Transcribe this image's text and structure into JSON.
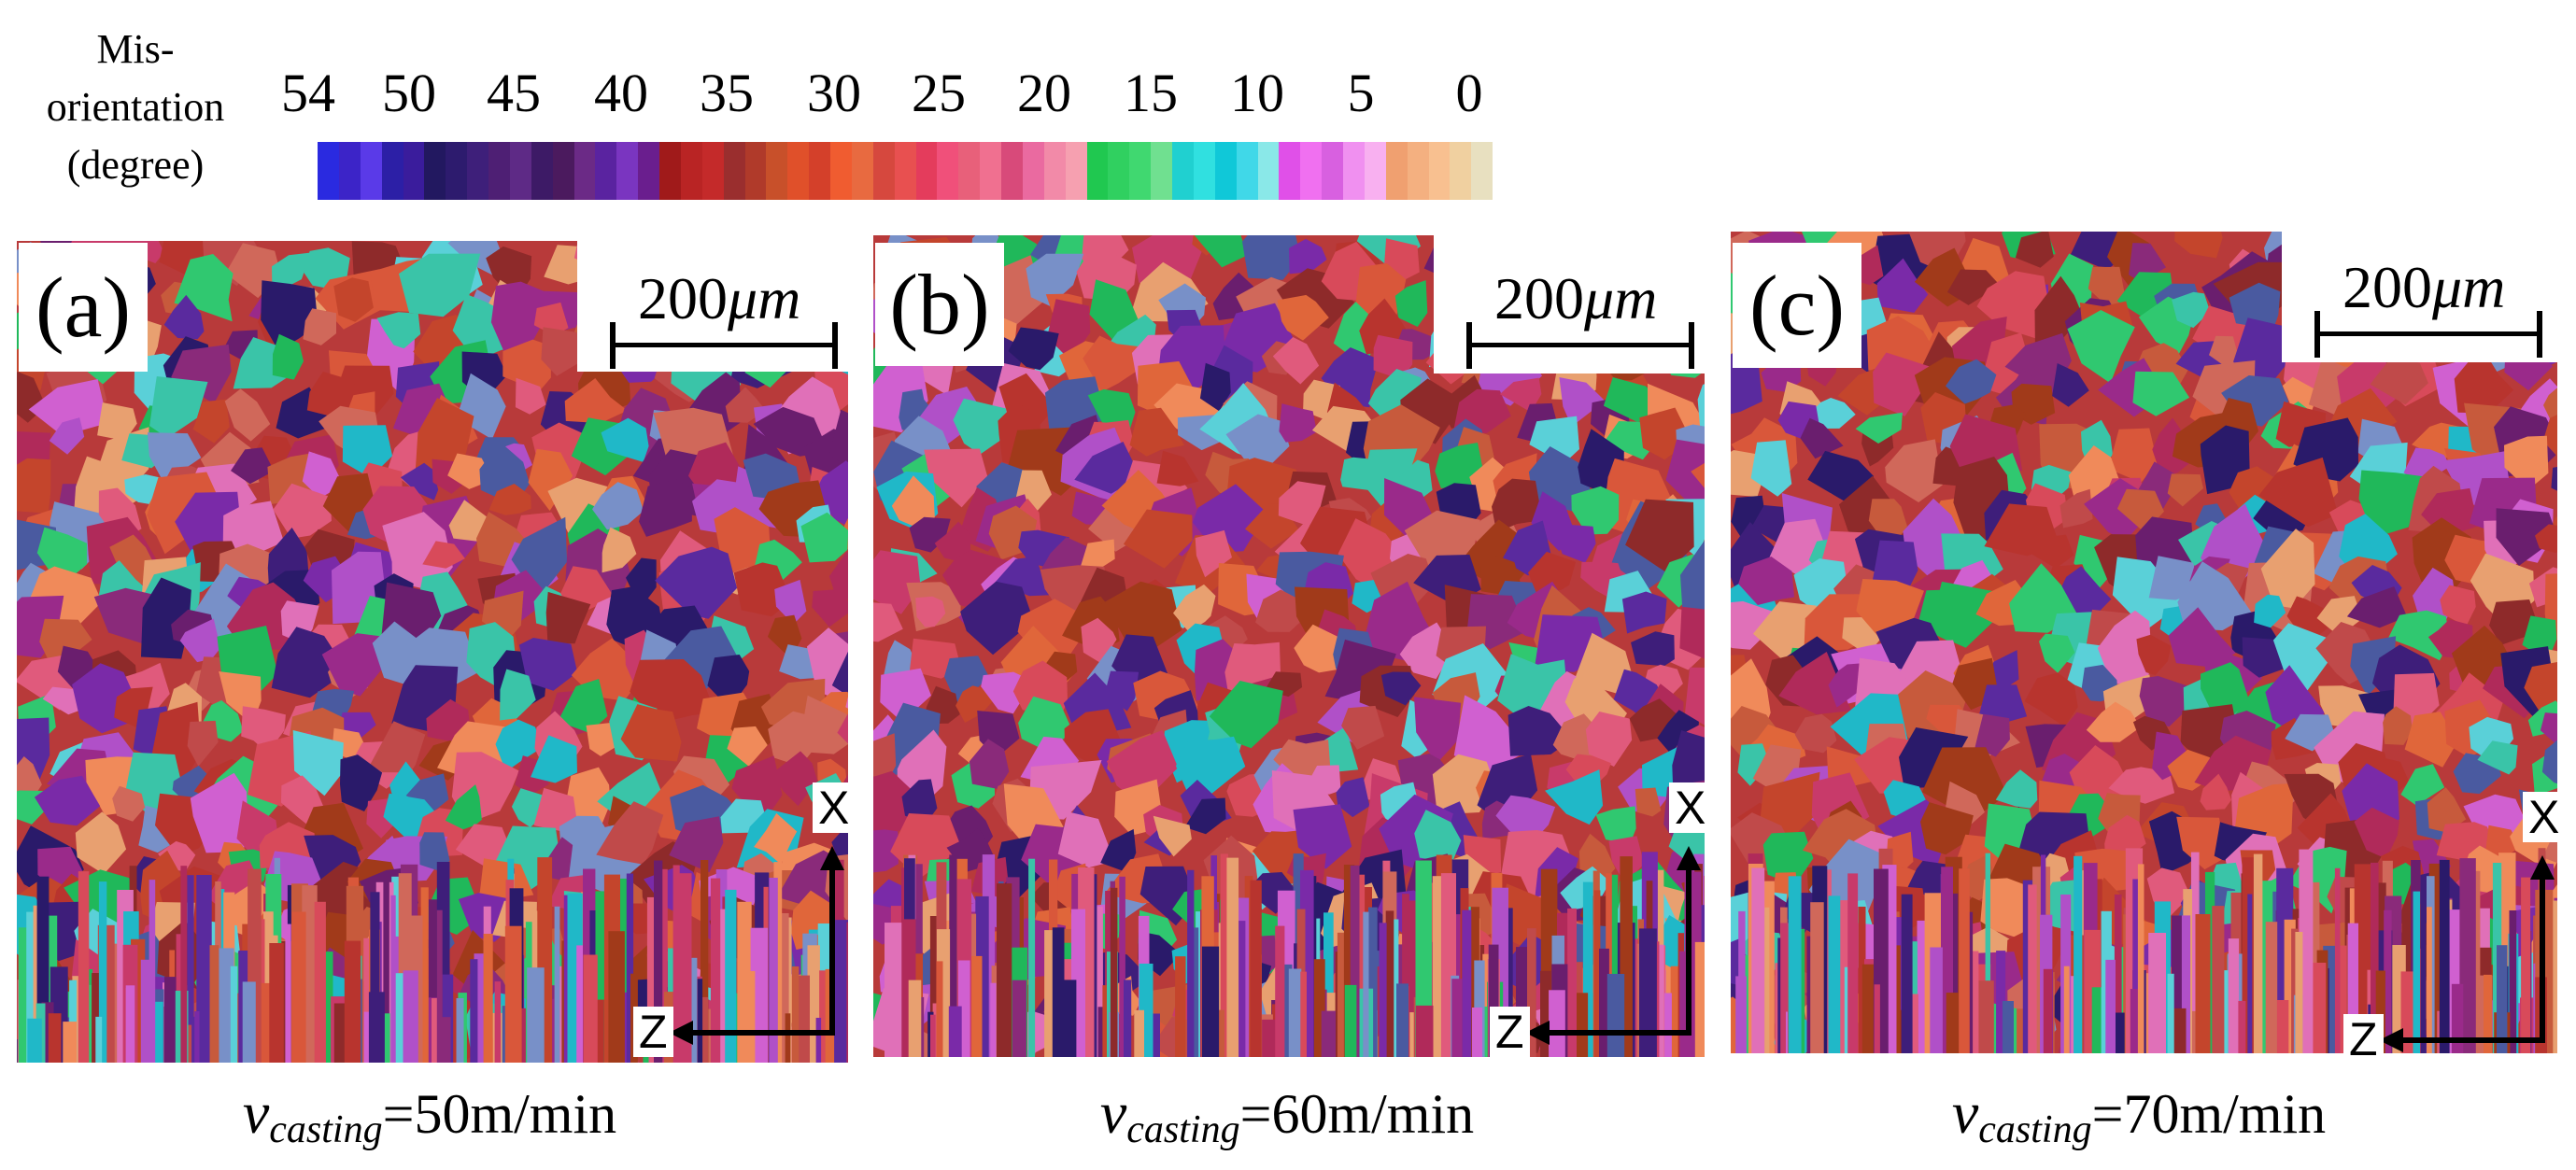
{
  "legend": {
    "title_lines": [
      "Mis-",
      "orientation",
      "(degree)"
    ],
    "ticks": [
      "54",
      "50",
      "45",
      "40",
      "35",
      "30",
      "25",
      "20",
      "15",
      "10",
      "5",
      "0"
    ],
    "segments": [
      "#2a2ae0",
      "#3c24c8",
      "#5a3ae8",
      "#2c1fa6",
      "#3a1c9c",
      "#221860",
      "#2d1b6e",
      "#3e1f7a",
      "#4e1f74",
      "#5e2a86",
      "#3d1a66",
      "#4b1a5e",
      "#6b2a86",
      "#5a23a0",
      "#7a35c0",
      "#6a1e8e",
      "#a01a1a",
      "#b92424",
      "#c42a2a",
      "#9a2e2e",
      "#b03a2a",
      "#c8502a",
      "#e0502a",
      "#d4402a",
      "#f05c30",
      "#e86a40",
      "#d6483e",
      "#e85050",
      "#e43c5c",
      "#f0507a",
      "#e8607a",
      "#f07090",
      "#d84a7a",
      "#ea6aa0",
      "#f28aa8",
      "#f6a0b0",
      "#20c850",
      "#30d060",
      "#40d870",
      "#70e090",
      "#20d0d0",
      "#30e0e0",
      "#10c8d8",
      "#40d8e8",
      "#8ae8e8",
      "#e050e8",
      "#f070f0",
      "#d860e0",
      "#f090f0",
      "#f8b0f0",
      "#f0a070",
      "#f4b080",
      "#f8c090",
      "#f0d0a0",
      "#e8e0c0"
    ]
  },
  "panels": [
    {
      "letter": "(a)",
      "scale_number": "200",
      "scale_unit": "μm",
      "axis_x": "X",
      "axis_z": "Z",
      "caption_v": "v",
      "caption_sub": "casting",
      "caption_value": "=50m/min"
    },
    {
      "letter": "(b)",
      "scale_number": "200",
      "scale_unit": "μm",
      "axis_x": "X",
      "axis_z": "Z",
      "caption_v": "v",
      "caption_sub": "casting",
      "caption_value": "=60m/min"
    },
    {
      "letter": "(c)",
      "scale_number": "200",
      "scale_unit": "μm",
      "axis_x": "X",
      "axis_z": "Z",
      "caption_v": "v",
      "caption_sub": "casting",
      "caption_value": "=70m/min"
    }
  ],
  "grain_palette": [
    "#c4452c",
    "#d9573a",
    "#b8342e",
    "#8e2a2a",
    "#a13a1a",
    "#e0663a",
    "#c75a3c",
    "#d84a5a",
    "#e05a7c",
    "#c83a6a",
    "#b02a5a",
    "#9a2a8a",
    "#7a2aa8",
    "#5a2a9e",
    "#3e1e7a",
    "#2a1a6a",
    "#6a1e6e",
    "#8a2a7a",
    "#e070b8",
    "#d060d0",
    "#b050c8",
    "#20b85a",
    "#30c870",
    "#3ac4a8",
    "#20b8c8",
    "#5ad0d8",
    "#7890c8",
    "#4a5aa0",
    "#f08a5a",
    "#e8a070",
    "#d0685a",
    "#c04a4a"
  ]
}
